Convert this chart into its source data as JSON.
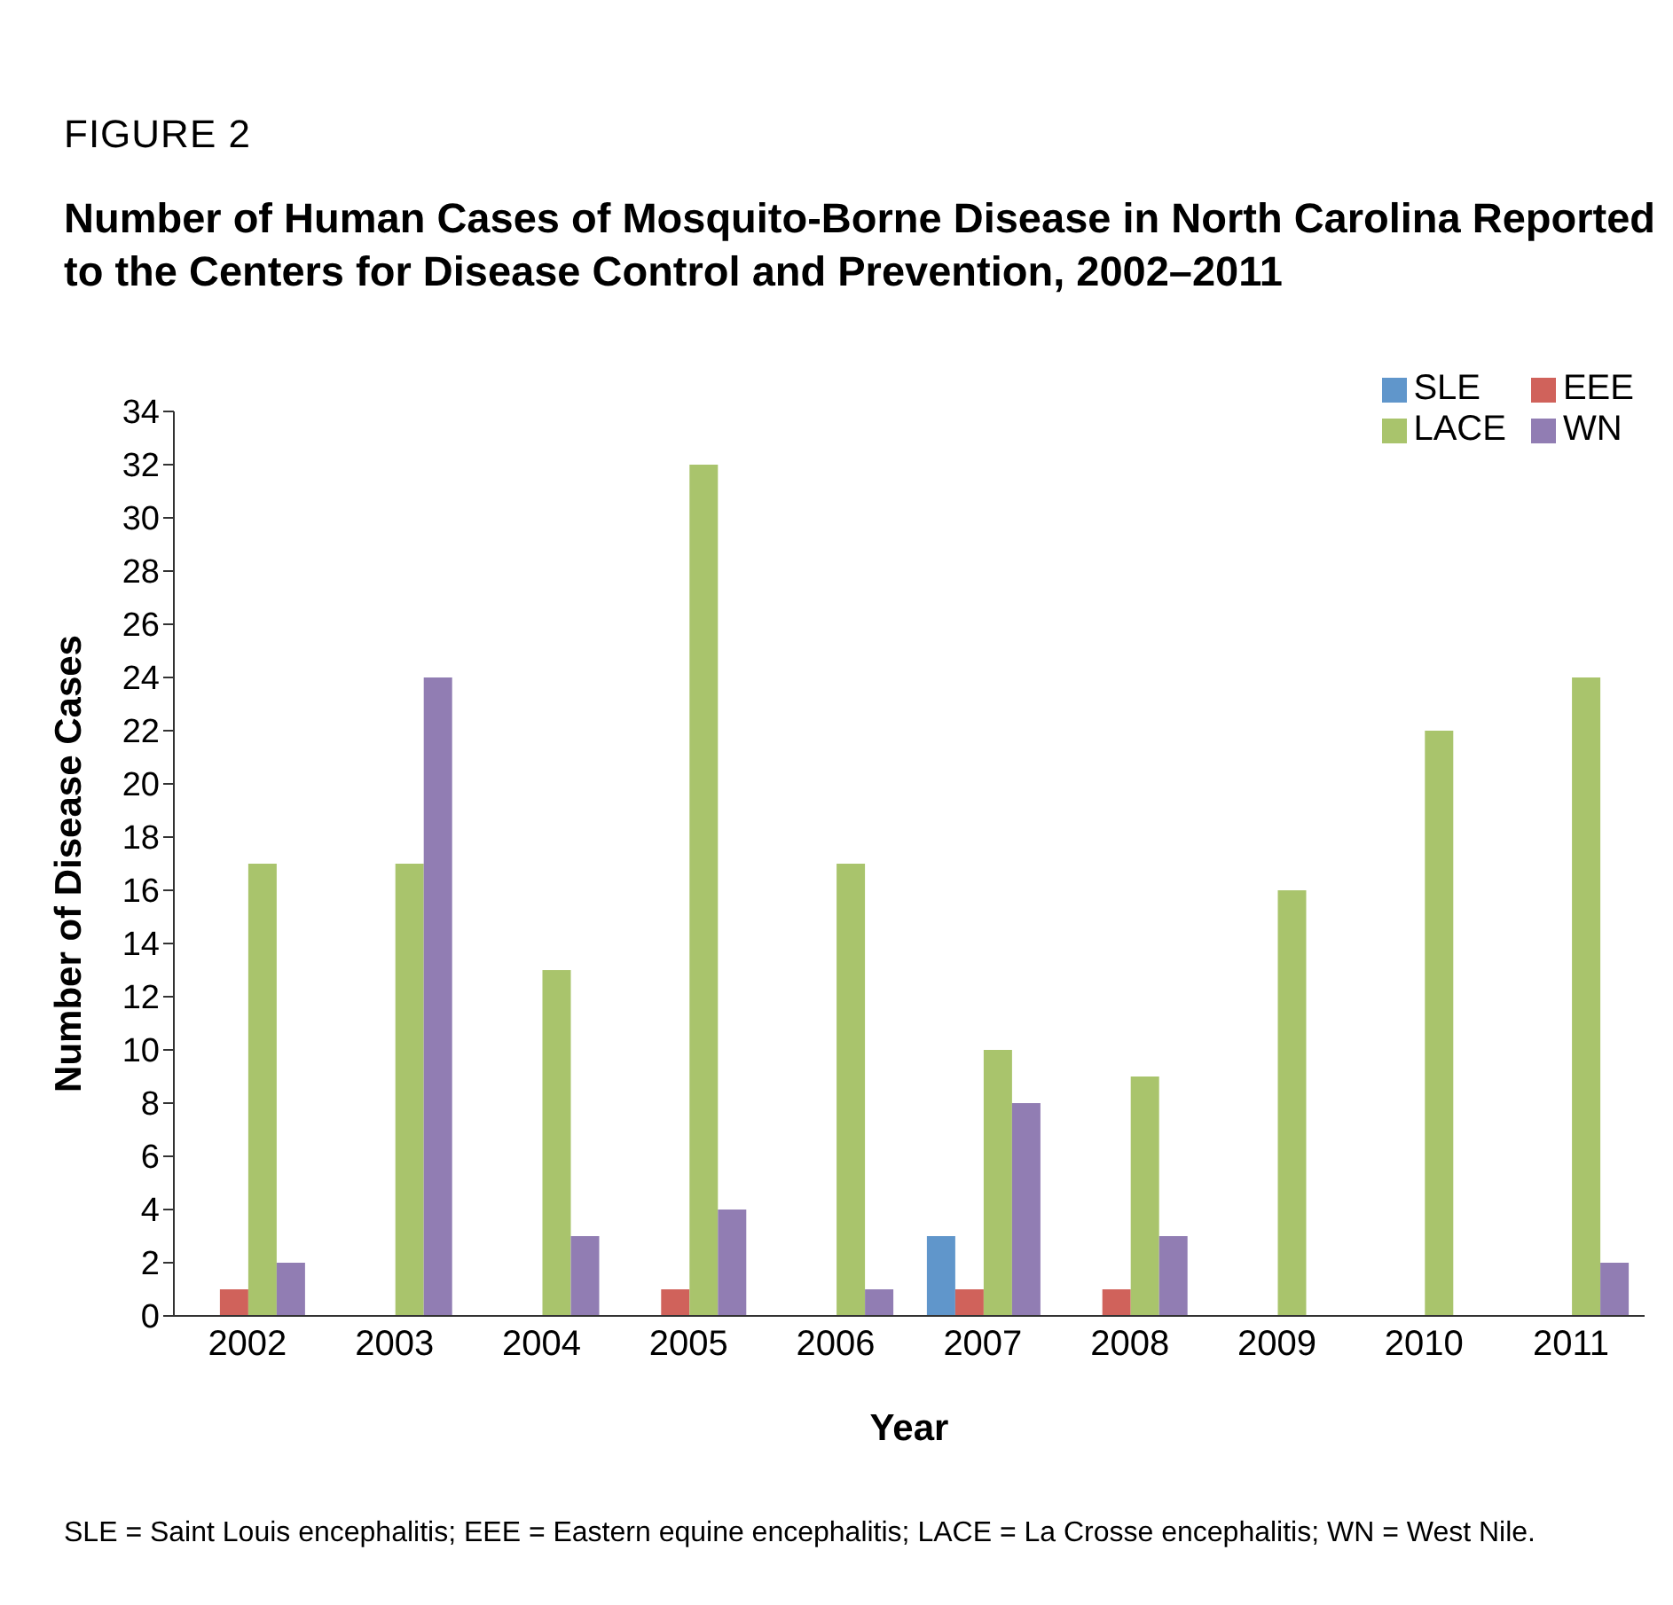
{
  "chart_data": {
    "type": "bar",
    "subtitle": "FIGURE 2",
    "title": "Number of Human Cases of Mosquito-Borne Disease in North Carolina Reported to the Centers for Disease Control and Prevention, 2002–2011",
    "xlabel": "Year",
    "ylabel": "Number of Disease Cases",
    "categories": [
      "2002",
      "2003",
      "2004",
      "2005",
      "2006",
      "2007",
      "2008",
      "2009",
      "2010",
      "2011"
    ],
    "series": [
      {
        "name": "SLE",
        "color": "#6096cb",
        "values": [
          0,
          0,
          0,
          0,
          0,
          3,
          0,
          0,
          0,
          0
        ]
      },
      {
        "name": "EEE",
        "color": "#d0625b",
        "values": [
          1,
          0,
          0,
          1,
          0,
          1,
          1,
          0,
          0,
          0
        ]
      },
      {
        "name": "LACE",
        "color": "#a9c46c",
        "values": [
          17,
          17,
          13,
          32,
          17,
          10,
          9,
          16,
          22,
          24
        ]
      },
      {
        "name": "WN",
        "color": "#917db3",
        "values": [
          2,
          24,
          3,
          4,
          1,
          8,
          3,
          0,
          0,
          2
        ]
      }
    ],
    "ylim": [
      0,
      34
    ],
    "yticks": [
      0,
      2,
      4,
      6,
      8,
      10,
      12,
      14,
      16,
      18,
      20,
      22,
      24,
      26,
      28,
      30,
      32,
      34
    ],
    "grid": false,
    "legend": "top right",
    "annotations": [
      "SLE = Saint Louis encephalitis; EEE = Eastern equine encephalitis; LACE = La Crosse encephalitis; WN = West Nile."
    ]
  }
}
